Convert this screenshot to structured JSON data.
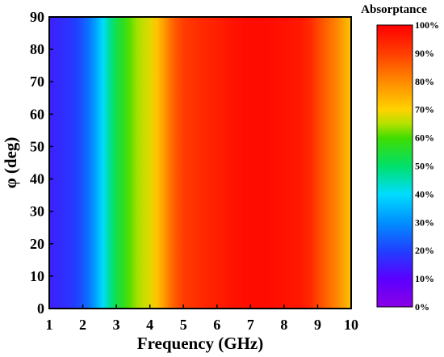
{
  "chart_data": {
    "type": "heatmap",
    "title": "",
    "xlabel": "Frequency (GHz)",
    "ylabel": "φ (deg)",
    "xlim": [
      1,
      10
    ],
    "ylim": [
      0,
      90
    ],
    "x_ticks": [
      "1",
      "2",
      "3",
      "4",
      "5",
      "6",
      "7",
      "8",
      "9",
      "10"
    ],
    "y_ticks": [
      "0",
      "10",
      "20",
      "30",
      "40",
      "50",
      "60",
      "70",
      "80",
      "90"
    ],
    "grid": false,
    "colorbar": {
      "title": "Absorptance",
      "range": [
        0,
        100
      ],
      "ticks": [
        "0%",
        "10%",
        "20%",
        "30%",
        "40%",
        "50%",
        "60%",
        "70%",
        "80%",
        "90%",
        "100%"
      ],
      "colormap": [
        {
          "value": 0,
          "color": "#8a00e6"
        },
        {
          "value": 10,
          "color": "#5a00ff"
        },
        {
          "value": 20,
          "color": "#2040ff"
        },
        {
          "value": 30,
          "color": "#0090ff"
        },
        {
          "value": 40,
          "color": "#00dcff"
        },
        {
          "value": 50,
          "color": "#00e06a"
        },
        {
          "value": 60,
          "color": "#40dd00"
        },
        {
          "value": 65,
          "color": "#b4e100"
        },
        {
          "value": 70,
          "color": "#ffd200"
        },
        {
          "value": 80,
          "color": "#ff8a00"
        },
        {
          "value": 90,
          "color": "#ff3d00"
        },
        {
          "value": 100,
          "color": "#ff0000"
        }
      ]
    },
    "series": [
      {
        "phi_independent": true,
        "frequency_GHz": [
          1.0,
          1.2,
          1.4,
          1.6,
          1.8,
          2.0,
          2.2,
          2.4,
          2.6,
          2.8,
          3.0,
          3.2,
          3.4,
          3.6,
          3.8,
          4.0,
          4.2,
          4.4,
          4.6,
          4.8,
          5.0,
          5.5,
          6.0,
          6.5,
          7.0,
          7.5,
          8.0,
          8.5,
          8.8,
          9.0,
          9.2,
          9.4,
          9.6,
          9.8,
          10.0
        ],
        "absorptance_pct": [
          15,
          16,
          17,
          18,
          20,
          23,
          27,
          33,
          40,
          47,
          53,
          57,
          61,
          64,
          66,
          68,
          72,
          77,
          83,
          87,
          90,
          93,
          95,
          97,
          98,
          98,
          97,
          96,
          93,
          89,
          86,
          83,
          80,
          76,
          72
        ]
      }
    ]
  }
}
